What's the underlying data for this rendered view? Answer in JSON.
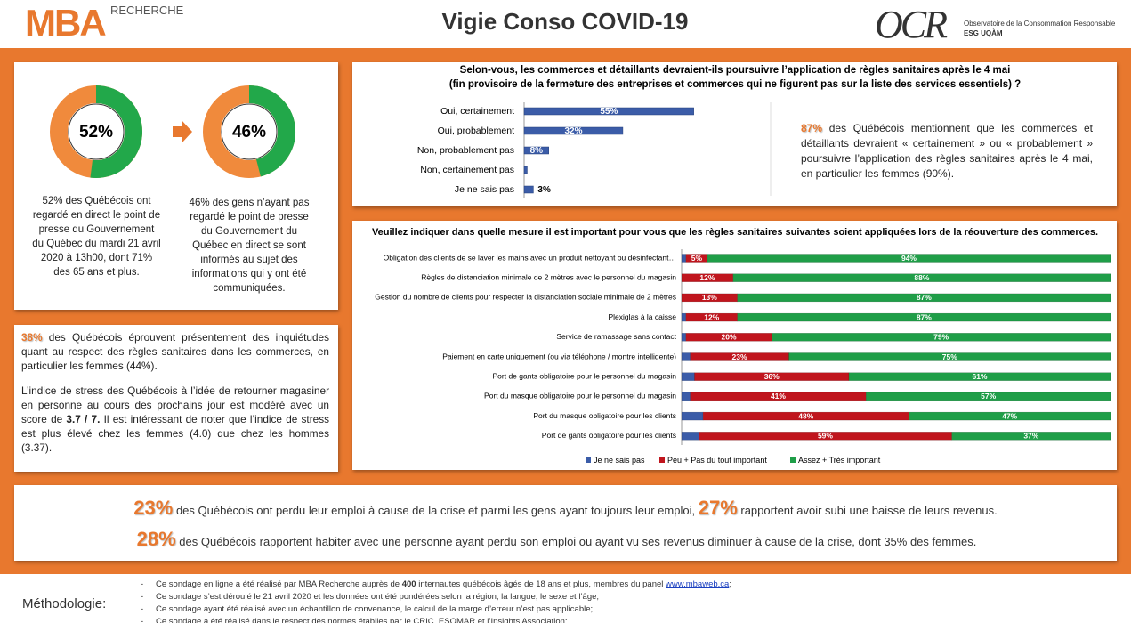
{
  "header": {
    "logo": "MBA",
    "logo_sub": "RECHERCHE",
    "title": "Vigie Conso COVID-19",
    "partner_logo": "OCR",
    "partner_name": "Observatoire de la Consommation Responsable",
    "partner_school": "ESG UQÀM"
  },
  "chart_data": [
    {
      "type": "donut",
      "values": [
        52
      ],
      "value_labels": [
        "52%"
      ],
      "color": "#22a84a",
      "rest_color": "#f08a3c",
      "caption": "52% des Québécois ont regardé en direct le point de presse du Gouvernement du Québec du mardi 21 avril 2020 à 13h00, dont 71% des 65 ans et plus."
    },
    {
      "type": "donut",
      "values": [
        46
      ],
      "value_labels": [
        "46%"
      ],
      "color": "#22a84a",
      "rest_color": "#f08a3c",
      "caption": "46% des gens n’ayant pas regardé le point de presse du Gouvernement du Québec en direct se sont informés au sujet des informations qui y ont été communiquées."
    },
    {
      "type": "bar",
      "title": [
        "Selon-vous, les commerces et détaillants devraient-ils poursuivre l’application de règles sanitaires après le 4 mai",
        "(fin provisoire de la fermeture des entreprises et commerces qui ne figurent pas sur la liste des services essentiels) ?"
      ],
      "categories": [
        "Oui, certainement",
        "Oui, probablement",
        "Non, probablement pas",
        "Non, certainement  pas",
        "Je ne sais pas"
      ],
      "values": [
        55,
        32,
        8,
        1,
        3
      ],
      "value_labels": [
        "55%",
        "32%",
        "8%",
        null,
        "3%"
      ],
      "color": "#3b5ca8",
      "xlim": [
        0,
        60
      ],
      "note": [
        {
          "text": "87%",
          "style": "stat"
        },
        {
          "text": " des Québécois mentionnent que les commerces et détaillants devraient « certainement » ou « probablement » poursuivre l’application des règles sanitaires après le 4 mai, en particulier les femmes (90%)."
        }
      ]
    },
    {
      "type": "stacked_bar",
      "title": "Veuillez indiquer dans quelle mesure il est important pour vous que les règles sanitaires suivantes soient appliquées lors de la réouverture des commerces.",
      "categories": [
        "Obligation des clients de se laver les mains avec un produit nettoyant ou désinfectant…",
        "Règles de distanciation minimale de 2 mètres avec le personnel du magasin",
        "Gestion du nombre de clients pour respecter la distanciation sociale minimale de 2 mètres",
        "Plexiglas à la caisse",
        "Service de ramassage sans contact",
        "Paiement en carte uniquement (ou via téléphone / montre intelligente)",
        "Port de gants obligatoire pour le personnel du magasin",
        "Port du masque obligatoire pour le personnel du magasin",
        "Port du masque obligatoire pour les clients",
        "Port de gants obligatoire pour les clients"
      ],
      "series": [
        {
          "name": "Je ne sais pas",
          "color": "#3b5ca8",
          "values": [
            1,
            0,
            0,
            1,
            1,
            2,
            3,
            2,
            5,
            4
          ]
        },
        {
          "name": "Peu + Pas du tout important",
          "color": "#c0151d",
          "values": [
            5,
            12,
            13,
            12,
            20,
            23,
            36,
            41,
            48,
            59
          ],
          "value_labels": [
            "5%",
            "12%",
            "13%",
            "12%",
            "20%",
            "23%",
            "36%",
            "41%",
            "48%",
            "59%"
          ]
        },
        {
          "name": "Assez + Très important",
          "color": "#1f9e48",
          "values": [
            94,
            88,
            87,
            87,
            79,
            75,
            61,
            57,
            47,
            37
          ],
          "value_labels": [
            "94%",
            "88%",
            "87%",
            "87%",
            "79%",
            "75%",
            "61%",
            "57%",
            "47%",
            "37%"
          ]
        }
      ],
      "xlim": [
        0,
        100
      ],
      "legend": "bottom"
    }
  ],
  "stress_box": {
    "paragraphs": [
      [
        {
          "text": "38%",
          "style": "stat"
        },
        {
          "text": " des Québécois éprouvent présentement des inquiétudes quant au respect des règles sanitaires dans les commerces, en particulier les femmes (44%)."
        }
      ],
      [
        {
          "text": "L’indice de stress des Québécois à l’idée de retourner magasiner en personne au cours des prochains jour est modéré avec un score de "
        },
        {
          "text": "3.7 / 7.",
          "style": "bold"
        },
        {
          "text": " Il est intéressant de noter que l’indice de stress est plus élevé chez les femmes (4.0) que chez les hommes (3.37)."
        }
      ]
    ]
  },
  "highlights": {
    "lines": [
      [
        {
          "text": "23%",
          "style": "stat"
        },
        {
          "text": " des Québécois ont perdu leur emploi à cause de la crise et parmi les gens ayant toujours leur emploi, "
        },
        {
          "text": "27%",
          "style": "stat"
        },
        {
          "text": " rapportent avoir subi une baisse de leurs revenus."
        }
      ],
      [
        {
          "text": "28%",
          "style": "stat"
        },
        {
          "text": " des Québécois rapportent habiter avec une personne ayant perdu son emploi ou ayant vu ses revenus diminuer à cause de la crise, dont 35% des femmes."
        }
      ]
    ]
  },
  "footer": {
    "label": "Méthodologie:",
    "bullet": "-",
    "items": [
      [
        {
          "text": "Ce sondage en ligne a été réalisé par MBA Recherche auprès de "
        },
        {
          "text": "400",
          "style": "bold"
        },
        {
          "text": " internautes québécois âgés de 18 ans et plus, membres du panel "
        },
        {
          "text": "www.mbaweb.ca",
          "style": "link"
        },
        {
          "text": ";"
        }
      ],
      [
        {
          "text": "Ce sondage s’est déroulé le 21 avril 2020 et les données ont été pondérées selon la région, la langue, le sexe et l’âge;"
        }
      ],
      [
        {
          "text": "Ce sondage ayant été réalisé avec un échantillon de convenance, le calcul de la marge d’erreur n’est pas applicable;"
        }
      ],
      [
        {
          "text": "Ce sondage a été réalisé dans le respect des normes établies par le CRIC, ESOMAR et l’Insights Association;"
        }
      ]
    ]
  }
}
